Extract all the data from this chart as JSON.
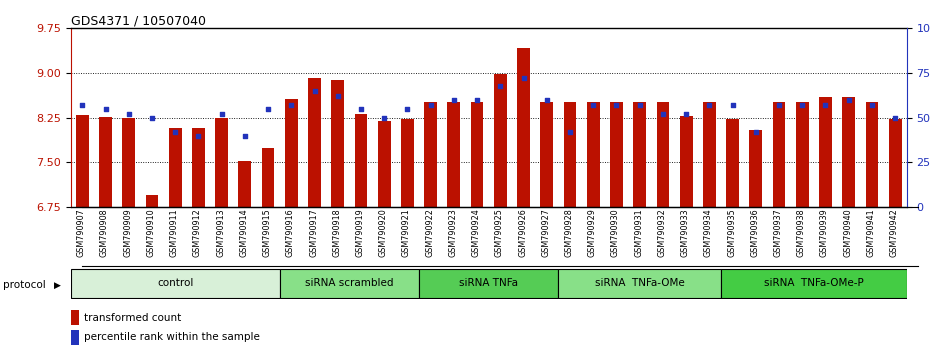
{
  "title": "GDS4371 / 10507040",
  "samples": [
    "GSM790907",
    "GSM790908",
    "GSM790909",
    "GSM790910",
    "GSM790911",
    "GSM790912",
    "GSM790913",
    "GSM790914",
    "GSM790915",
    "GSM790916",
    "GSM790917",
    "GSM790918",
    "GSM790919",
    "GSM790920",
    "GSM790921",
    "GSM790922",
    "GSM790923",
    "GSM790924",
    "GSM790925",
    "GSM790926",
    "GSM790927",
    "GSM790928",
    "GSM790929",
    "GSM790930",
    "GSM790931",
    "GSM790932",
    "GSM790933",
    "GSM790934",
    "GSM790935",
    "GSM790936",
    "GSM790937",
    "GSM790938",
    "GSM790939",
    "GSM790940",
    "GSM790941",
    "GSM790942"
  ],
  "red_values": [
    8.3,
    8.27,
    8.25,
    6.95,
    8.08,
    8.08,
    8.25,
    7.52,
    7.75,
    8.57,
    8.92,
    8.88,
    8.32,
    8.2,
    8.22,
    8.52,
    8.52,
    8.52,
    8.98,
    9.42,
    8.52,
    8.52,
    8.52,
    8.52,
    8.52,
    8.52,
    8.28,
    8.52,
    8.22,
    8.05,
    8.52,
    8.52,
    8.6,
    8.6,
    8.52,
    8.22
  ],
  "blue_values": [
    57,
    55,
    52,
    50,
    42,
    40,
    52,
    40,
    55,
    57,
    65,
    62,
    55,
    50,
    55,
    57,
    60,
    60,
    68,
    72,
    60,
    42,
    57,
    57,
    57,
    52,
    52,
    57,
    57,
    42,
    57,
    57,
    57,
    60,
    57,
    50
  ],
  "groups": [
    {
      "label": "control",
      "start": 0,
      "end": 9,
      "color": "#d8f0d8"
    },
    {
      "label": "siRNA scrambled",
      "start": 9,
      "end": 15,
      "color": "#88e088"
    },
    {
      "label": "siRNA TNFa",
      "start": 15,
      "end": 21,
      "color": "#55cc55"
    },
    {
      "label": "siRNA  TNFa-OMe",
      "start": 21,
      "end": 28,
      "color": "#88e088"
    },
    {
      "label": "siRNA  TNFa-OMe-P",
      "start": 28,
      "end": 36,
      "color": "#44cc44"
    }
  ],
  "ylim_left": [
    6.75,
    9.75
  ],
  "ylim_right": [
    0,
    100
  ],
  "yticks_left": [
    6.75,
    7.5,
    8.25,
    9.0,
    9.75
  ],
  "yticks_right": [
    0,
    25,
    50,
    75,
    100
  ],
  "ytick_labels_right": [
    "0",
    "25",
    "50",
    "75",
    "100%"
  ],
  "bar_color": "#bb1100",
  "dot_color": "#2233bb",
  "bar_width": 0.55,
  "grid_lines": [
    7.5,
    8.25,
    9.0
  ],
  "protocol_label": "protocol",
  "legend1": "transformed count",
  "legend2": "percentile rank within the sample"
}
